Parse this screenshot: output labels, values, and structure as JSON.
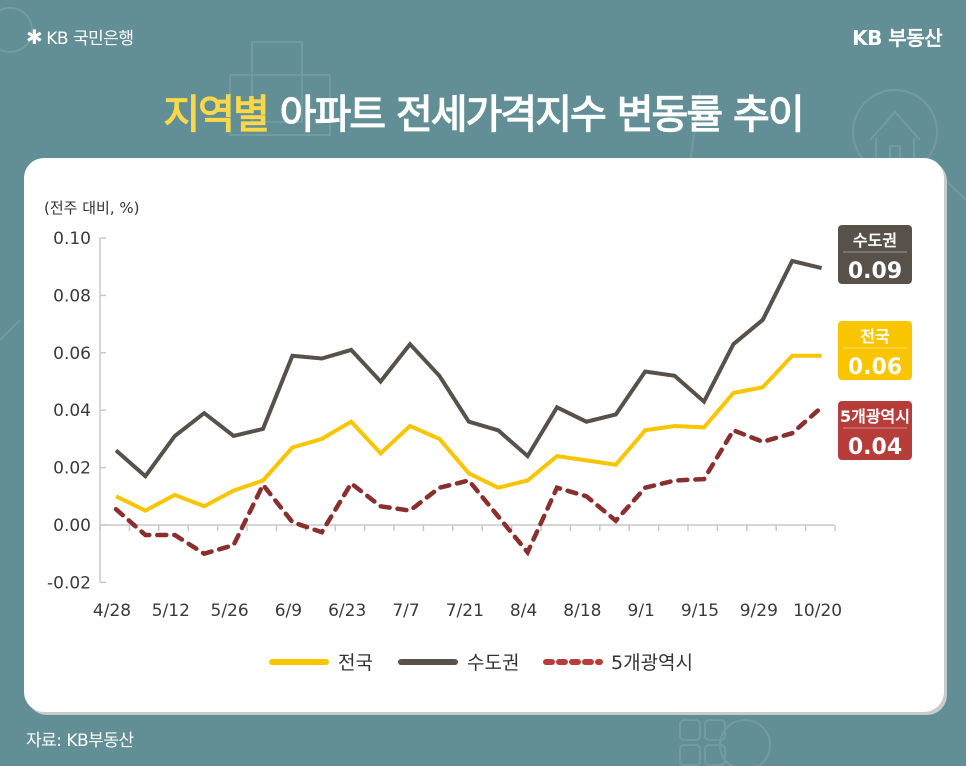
{
  "header": {
    "bank_logo_text": "KB 국민은행",
    "brand_right": "KB 부동산",
    "title_highlight": "지역별",
    "title_rest": " 아파트 전세가격지수 변동률 추이"
  },
  "footer": {
    "source": "자료: KB부동산"
  },
  "colors": {
    "background": "#628f95",
    "title_highlight": "#f9d94a",
    "national": "#f8c500",
    "capital": "#57514a",
    "metro5": "#8b2e2e",
    "metro5_badge": "#b73d3a"
  },
  "chart_data": {
    "type": "line",
    "title": "지역별 아파트 전세가격지수 변동률 추이",
    "ylabel": "(전주 대비, %)",
    "xlabel": "",
    "ylim": [
      -0.02,
      0.1
    ],
    "yticks": [
      "-0.02",
      "0.00",
      "0.02",
      "0.04",
      "0.06",
      "0.08",
      "0.10"
    ],
    "ytick_values": [
      -0.02,
      0.0,
      0.02,
      0.04,
      0.06,
      0.08,
      0.1
    ],
    "grid": false,
    "legend_position": "bottom",
    "n_points": 25,
    "x_tick_labels": [
      {
        "index": 0,
        "label": "4/28"
      },
      {
        "index": 2,
        "label": "5/12"
      },
      {
        "index": 4,
        "label": "5/26"
      },
      {
        "index": 6,
        "label": "6/9"
      },
      {
        "index": 8,
        "label": "6/23"
      },
      {
        "index": 10,
        "label": "7/7"
      },
      {
        "index": 12,
        "label": "7/21"
      },
      {
        "index": 14,
        "label": "8/4"
      },
      {
        "index": 16,
        "label": "8/18"
      },
      {
        "index": 18,
        "label": "9/1"
      },
      {
        "index": 20,
        "label": "9/15"
      },
      {
        "index": 22,
        "label": "9/29"
      },
      {
        "index": 24,
        "label": "10/20"
      }
    ],
    "series": [
      {
        "name": "전국",
        "style": "solid",
        "values": [
          0.01,
          0.005,
          0.0105,
          0.0065,
          0.012,
          0.0155,
          0.027,
          0.03,
          0.036,
          0.025,
          0.0345,
          0.03,
          0.018,
          0.013,
          0.0155,
          0.024,
          0.0225,
          0.021,
          0.033,
          0.0345,
          0.034,
          0.046,
          0.048,
          0.059,
          0.059
        ],
        "latest_label": "0.06"
      },
      {
        "name": "수도권",
        "style": "solid",
        "values": [
          0.026,
          0.017,
          0.031,
          0.039,
          0.031,
          0.0335,
          0.059,
          0.058,
          0.061,
          0.05,
          0.063,
          0.052,
          0.036,
          0.033,
          0.024,
          0.041,
          0.036,
          0.0385,
          0.0535,
          0.052,
          0.043,
          0.063,
          0.0715,
          0.092,
          0.0895
        ],
        "latest_label": "0.09"
      },
      {
        "name": "5개광역시",
        "style": "dashed",
        "values": [
          0.0055,
          -0.0035,
          -0.0035,
          -0.01,
          -0.007,
          0.014,
          0.001,
          -0.0025,
          0.0145,
          0.0065,
          0.005,
          0.013,
          0.0155,
          0.003,
          -0.0095,
          0.013,
          0.01,
          0.0015,
          0.013,
          0.0155,
          0.016,
          0.033,
          0.029,
          0.032,
          0.041
        ],
        "latest_label": "0.04"
      }
    ],
    "badges": [
      {
        "series": "수도권",
        "label": "수도권",
        "value": "0.09"
      },
      {
        "series": "전국",
        "label": "전국",
        "value": "0.06"
      },
      {
        "series": "5개광역시",
        "label": "5개광역시",
        "value": "0.04"
      }
    ]
  }
}
